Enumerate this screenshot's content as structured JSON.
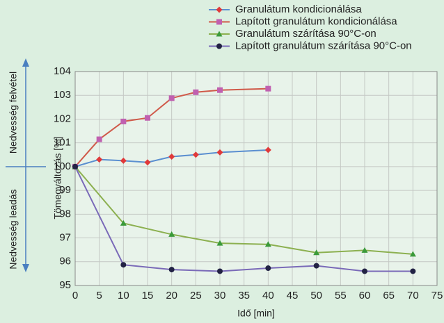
{
  "chart_data": {
    "type": "line",
    "xlabel": "Idő [min]",
    "ylabel": "Tömegváltozás [%]",
    "annotations": [
      "Nedvesség felvétel",
      "Nedvesség leadás"
    ],
    "xlim": [
      0,
      75
    ],
    "xticks": [
      0,
      5,
      10,
      15,
      20,
      25,
      30,
      35,
      40,
      45,
      50,
      55,
      60,
      65,
      70,
      75
    ],
    "ylim": [
      95,
      104
    ],
    "yticks": [
      95,
      96,
      97,
      98,
      99,
      100,
      101,
      102,
      103,
      104
    ],
    "grid": true,
    "series": [
      {
        "name": "Granulátum kondicionálása",
        "color": "#5b8fd0",
        "marker_color": "#e0393a",
        "marker": "diamond",
        "x": [
          0,
          5,
          10,
          15,
          20,
          25,
          30,
          40
        ],
        "values": [
          100,
          100.3,
          100.25,
          100.18,
          100.42,
          100.5,
          100.6,
          100.7
        ]
      },
      {
        "name": "Lapított granulátum kondicionálása",
        "color": "#d05a4a",
        "marker_color": "#c060b0",
        "marker": "square",
        "x": [
          0,
          5,
          10,
          15,
          20,
          25,
          30,
          40
        ],
        "values": [
          100,
          101.15,
          101.9,
          102.05,
          102.88,
          103.13,
          103.22,
          103.28
        ]
      },
      {
        "name": "Granulátum szárítása 90°C-on",
        "color": "#8cb050",
        "marker_color": "#3a9a3a",
        "marker": "triangle",
        "x": [
          0,
          10,
          20,
          30,
          40,
          50,
          60,
          70
        ],
        "values": [
          100,
          97.62,
          97.15,
          96.78,
          96.73,
          96.38,
          96.48,
          96.32
        ]
      },
      {
        "name": "Lapított granulátum szárítása 90°C-on",
        "color": "#7a6ab8",
        "marker_color": "#222244",
        "marker": "circle",
        "x": [
          0,
          10,
          20,
          30,
          40,
          50,
          60,
          70
        ],
        "values": [
          100,
          95.87,
          95.67,
          95.6,
          95.73,
          95.83,
          95.6,
          95.6
        ]
      }
    ]
  }
}
